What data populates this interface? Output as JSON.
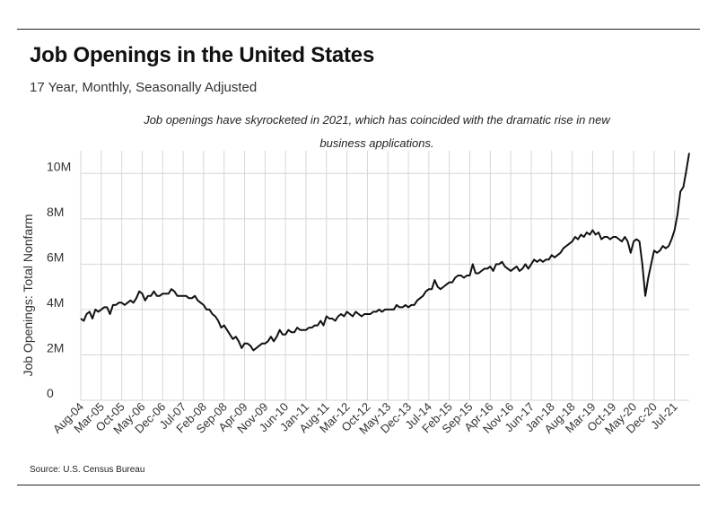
{
  "title": "Job Openings in the United States",
  "subtitle": "17 Year, Monthly, Seasonally Adjusted",
  "annotation": "Job openings have skyrocketed in 2021, which has coincided with the dramatic rise in new business applications.",
  "source": "Source:  U.S. Census Bureau",
  "chart_data": {
    "type": "line",
    "title": "Job Openings in the United States",
    "ylabel": "Job Openings: Total Nonfarm",
    "xlabel": "",
    "ylim": [
      0,
      11000000
    ],
    "y_ticks": [
      0,
      2000000,
      4000000,
      6000000,
      8000000,
      10000000
    ],
    "y_tick_labels": [
      "0",
      "2M",
      "4M",
      "6M",
      "8M",
      "10M"
    ],
    "x_tick_labels": [
      "Aug-04",
      "Mar-05",
      "Oct-05",
      "May-06",
      "Dec-06",
      "Jul-07",
      "Feb-08",
      "Sep-08",
      "Apr-09",
      "Nov-09",
      "Jun-10",
      "Jan-11",
      "Aug-11",
      "Mar-12",
      "Oct-12",
      "May-13",
      "Dec-13",
      "Jul-14",
      "Feb-15",
      "Sep-15",
      "Apr-16",
      "Nov-16",
      "Jun-17",
      "Jan-18",
      "Aug-18",
      "Mar-19",
      "Oct-19",
      "May-20",
      "Dec-20",
      "Jul-21"
    ],
    "grid": true,
    "line_color": "#111111",
    "series": [
      {
        "points": [
          [
            "2004-08",
            3.6
          ],
          [
            "2004-09",
            3.5
          ],
          [
            "2004-10",
            3.8
          ],
          [
            "2004-11",
            3.9
          ],
          [
            "2004-12",
            3.6
          ],
          [
            "2005-01",
            4.0
          ],
          [
            "2005-02",
            3.9
          ],
          [
            "2005-03",
            4.0
          ],
          [
            "2005-04",
            4.1
          ],
          [
            "2005-05",
            4.1
          ],
          [
            "2005-06",
            3.8
          ],
          [
            "2005-07",
            4.2
          ],
          [
            "2005-08",
            4.2
          ],
          [
            "2005-09",
            4.3
          ],
          [
            "2005-10",
            4.3
          ],
          [
            "2005-11",
            4.2
          ],
          [
            "2005-12",
            4.3
          ],
          [
            "2006-01",
            4.4
          ],
          [
            "2006-02",
            4.3
          ],
          [
            "2006-03",
            4.5
          ],
          [
            "2006-04",
            4.8
          ],
          [
            "2006-05",
            4.7
          ],
          [
            "2006-06",
            4.4
          ],
          [
            "2006-07",
            4.6
          ],
          [
            "2006-08",
            4.6
          ],
          [
            "2006-09",
            4.8
          ],
          [
            "2006-10",
            4.6
          ],
          [
            "2006-11",
            4.6
          ],
          [
            "2006-12",
            4.7
          ],
          [
            "2007-01",
            4.7
          ],
          [
            "2007-02",
            4.7
          ],
          [
            "2007-03",
            4.9
          ],
          [
            "2007-04",
            4.8
          ],
          [
            "2007-05",
            4.6
          ],
          [
            "2007-06",
            4.6
          ],
          [
            "2007-07",
            4.6
          ],
          [
            "2007-08",
            4.6
          ],
          [
            "2007-09",
            4.5
          ],
          [
            "2007-10",
            4.5
          ],
          [
            "2007-11",
            4.6
          ],
          [
            "2007-12",
            4.4
          ],
          [
            "2008-01",
            4.3
          ],
          [
            "2008-02",
            4.2
          ],
          [
            "2008-03",
            4.0
          ],
          [
            "2008-04",
            4.0
          ],
          [
            "2008-05",
            3.8
          ],
          [
            "2008-06",
            3.7
          ],
          [
            "2008-07",
            3.5
          ],
          [
            "2008-08",
            3.2
          ],
          [
            "2008-09",
            3.3
          ],
          [
            "2008-10",
            3.1
          ],
          [
            "2008-11",
            2.9
          ],
          [
            "2008-12",
            2.7
          ],
          [
            "2009-01",
            2.8
          ],
          [
            "2009-02",
            2.6
          ],
          [
            "2009-03",
            2.3
          ],
          [
            "2009-04",
            2.5
          ],
          [
            "2009-05",
            2.5
          ],
          [
            "2009-06",
            2.4
          ],
          [
            "2009-07",
            2.2
          ],
          [
            "2009-08",
            2.3
          ],
          [
            "2009-09",
            2.4
          ],
          [
            "2009-10",
            2.5
          ],
          [
            "2009-11",
            2.5
          ],
          [
            "2009-12",
            2.6
          ],
          [
            "2010-01",
            2.8
          ],
          [
            "2010-02",
            2.6
          ],
          [
            "2010-03",
            2.8
          ],
          [
            "2010-04",
            3.1
          ],
          [
            "2010-05",
            2.9
          ],
          [
            "2010-06",
            2.9
          ],
          [
            "2010-07",
            3.1
          ],
          [
            "2010-08",
            3.0
          ],
          [
            "2010-09",
            3.0
          ],
          [
            "2010-10",
            3.2
          ],
          [
            "2010-11",
            3.1
          ],
          [
            "2010-12",
            3.1
          ],
          [
            "2011-01",
            3.1
          ],
          [
            "2011-02",
            3.2
          ],
          [
            "2011-03",
            3.2
          ],
          [
            "2011-04",
            3.3
          ],
          [
            "2011-05",
            3.3
          ],
          [
            "2011-06",
            3.5
          ],
          [
            "2011-07",
            3.3
          ],
          [
            "2011-08",
            3.7
          ],
          [
            "2011-09",
            3.6
          ],
          [
            "2011-10",
            3.6
          ],
          [
            "2011-11",
            3.5
          ],
          [
            "2011-12",
            3.7
          ],
          [
            "2012-01",
            3.8
          ],
          [
            "2012-02",
            3.7
          ],
          [
            "2012-03",
            3.9
          ],
          [
            "2012-04",
            3.8
          ],
          [
            "2012-05",
            3.7
          ],
          [
            "2012-06",
            3.9
          ],
          [
            "2012-07",
            3.8
          ],
          [
            "2012-08",
            3.7
          ],
          [
            "2012-09",
            3.8
          ],
          [
            "2012-10",
            3.8
          ],
          [
            "2012-11",
            3.8
          ],
          [
            "2012-12",
            3.9
          ],
          [
            "2013-01",
            3.9
          ],
          [
            "2013-02",
            4.0
          ],
          [
            "2013-03",
            3.9
          ],
          [
            "2013-04",
            4.0
          ],
          [
            "2013-05",
            4.0
          ],
          [
            "2013-06",
            4.0
          ],
          [
            "2013-07",
            4.0
          ],
          [
            "2013-08",
            4.2
          ],
          [
            "2013-09",
            4.1
          ],
          [
            "2013-10",
            4.1
          ],
          [
            "2013-11",
            4.2
          ],
          [
            "2013-12",
            4.1
          ],
          [
            "2014-01",
            4.2
          ],
          [
            "2014-02",
            4.2
          ],
          [
            "2014-03",
            4.4
          ],
          [
            "2014-04",
            4.5
          ],
          [
            "2014-05",
            4.6
          ],
          [
            "2014-06",
            4.8
          ],
          [
            "2014-07",
            4.9
          ],
          [
            "2014-08",
            4.9
          ],
          [
            "2014-09",
            5.3
          ],
          [
            "2014-10",
            5.0
          ],
          [
            "2014-11",
            4.9
          ],
          [
            "2014-12",
            5.0
          ],
          [
            "2015-01",
            5.1
          ],
          [
            "2015-02",
            5.2
          ],
          [
            "2015-03",
            5.2
          ],
          [
            "2015-04",
            5.4
          ],
          [
            "2015-05",
            5.5
          ],
          [
            "2015-06",
            5.5
          ],
          [
            "2015-07",
            5.4
          ],
          [
            "2015-08",
            5.5
          ],
          [
            "2015-09",
            5.5
          ],
          [
            "2015-10",
            6.0
          ],
          [
            "2015-11",
            5.6
          ],
          [
            "2015-12",
            5.6
          ],
          [
            "2016-01",
            5.7
          ],
          [
            "2016-02",
            5.8
          ],
          [
            "2016-03",
            5.8
          ],
          [
            "2016-04",
            5.9
          ],
          [
            "2016-05",
            5.7
          ],
          [
            "2016-06",
            6.0
          ],
          [
            "2016-07",
            6.0
          ],
          [
            "2016-08",
            6.1
          ],
          [
            "2016-09",
            5.9
          ],
          [
            "2016-10",
            5.8
          ],
          [
            "2016-11",
            5.7
          ],
          [
            "2016-12",
            5.8
          ],
          [
            "2017-01",
            5.9
          ],
          [
            "2017-02",
            5.7
          ],
          [
            "2017-03",
            5.8
          ],
          [
            "2017-04",
            6.0
          ],
          [
            "2017-05",
            5.8
          ],
          [
            "2017-06",
            6.0
          ],
          [
            "2017-07",
            6.2
          ],
          [
            "2017-08",
            6.1
          ],
          [
            "2017-09",
            6.2
          ],
          [
            "2017-10",
            6.1
          ],
          [
            "2017-11",
            6.2
          ],
          [
            "2017-12",
            6.2
          ],
          [
            "2018-01",
            6.4
          ],
          [
            "2018-02",
            6.3
          ],
          [
            "2018-03",
            6.4
          ],
          [
            "2018-04",
            6.5
          ],
          [
            "2018-05",
            6.7
          ],
          [
            "2018-06",
            6.8
          ],
          [
            "2018-07",
            6.9
          ],
          [
            "2018-08",
            7.0
          ],
          [
            "2018-09",
            7.2
          ],
          [
            "2018-10",
            7.1
          ],
          [
            "2018-11",
            7.3
          ],
          [
            "2018-12",
            7.2
          ],
          [
            "2019-01",
            7.4
          ],
          [
            "2019-02",
            7.3
          ],
          [
            "2019-03",
            7.5
          ],
          [
            "2019-04",
            7.3
          ],
          [
            "2019-05",
            7.4
          ],
          [
            "2019-06",
            7.1
          ],
          [
            "2019-07",
            7.2
          ],
          [
            "2019-08",
            7.2
          ],
          [
            "2019-09",
            7.1
          ],
          [
            "2019-10",
            7.2
          ],
          [
            "2019-11",
            7.2
          ],
          [
            "2019-12",
            7.1
          ],
          [
            "2020-01",
            7.0
          ],
          [
            "2020-02",
            7.2
          ],
          [
            "2020-03",
            7.0
          ],
          [
            "2020-04",
            6.5
          ],
          [
            "2020-05",
            7.0
          ],
          [
            "2020-06",
            7.1
          ],
          [
            "2020-07",
            7.0
          ],
          [
            "2020-08",
            6.0
          ],
          [
            "2020-09",
            4.6
          ],
          [
            "2020-10",
            5.4
          ],
          [
            "2020-11",
            6.0
          ],
          [
            "2020-12",
            6.6
          ],
          [
            "2021-01",
            6.5
          ],
          [
            "2021-02",
            6.6
          ],
          [
            "2021-03",
            6.8
          ],
          [
            "2021-04",
            6.7
          ],
          [
            "2021-05",
            6.8
          ],
          [
            "2021-06",
            7.1
          ],
          [
            "2021-07",
            7.5
          ],
          [
            "2021-08",
            8.2
          ],
          [
            "2021-09",
            9.2
          ],
          [
            "2021-10",
            9.4
          ],
          [
            "2021-11",
            10.1
          ],
          [
            "2021-12",
            10.9
          ]
        ],
        "values_unit": "millions"
      }
    ]
  }
}
